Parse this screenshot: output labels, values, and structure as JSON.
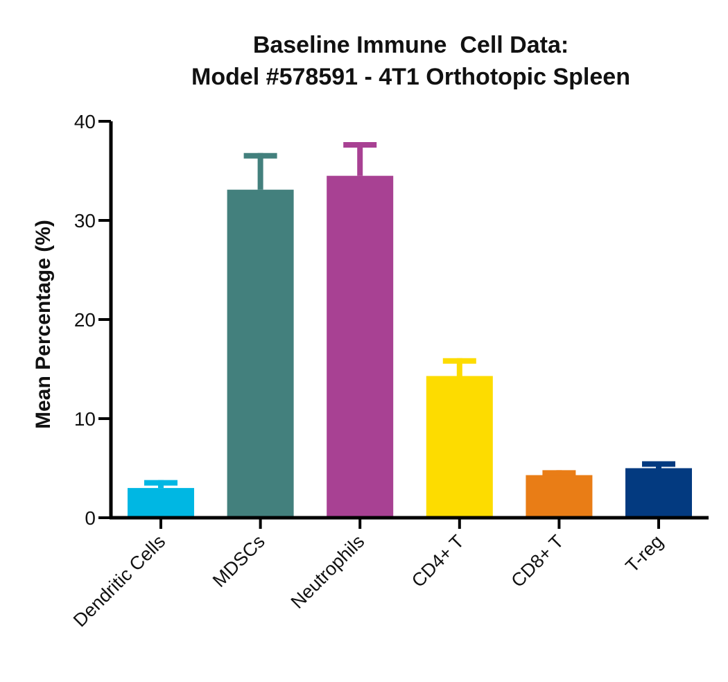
{
  "chart_data": {
    "type": "bar",
    "title_line1": "Baseline Immune  Cell Data:",
    "title_line2": "Model #578591 - 4T1 Orthotopic Spleen",
    "xlabel": "",
    "ylabel": "Mean Percentage (%)",
    "ylim": [
      0,
      40
    ],
    "yticks": [
      0,
      10,
      20,
      30,
      40
    ],
    "categories": [
      "Dendritic Cells",
      "MDSCs",
      "Neutrophils",
      "CD4+ T",
      "CD8+ T",
      "T-reg"
    ],
    "values": [
      3.0,
      33.1,
      34.5,
      14.3,
      4.3,
      5.0
    ],
    "errors": [
      0.8,
      3.7,
      3.4,
      1.8,
      0.5,
      0.7
    ],
    "colors": [
      "#00b7e3",
      "#43807d",
      "#a84193",
      "#fddc00",
      "#e97d16",
      "#033a80"
    ],
    "grid": false,
    "legend": "none"
  }
}
